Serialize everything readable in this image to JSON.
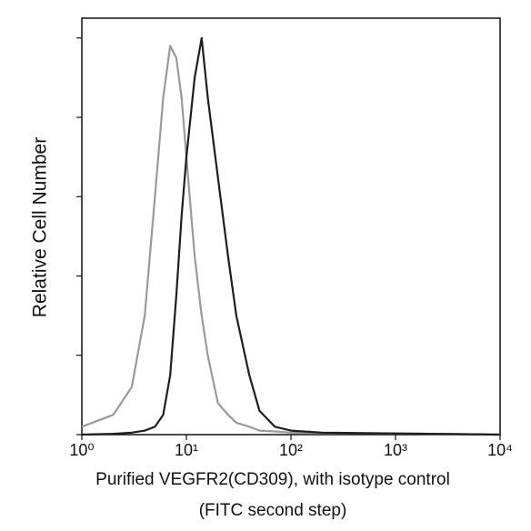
{
  "chart_data": {
    "type": "line",
    "y_label": "Relative Cell Number",
    "x_label_lines": [
      "Purified VEGFR2(CD309), with isotype control",
      "(FITC second step)"
    ],
    "x": [
      1,
      2,
      3,
      4,
      5,
      6,
      7,
      8,
      9,
      10,
      12,
      14,
      16,
      20,
      25,
      30,
      40,
      50,
      70,
      100,
      200,
      1000,
      10000
    ],
    "series": [
      {
        "color": "#9a9a9a",
        "values": [
          2,
          5,
          12,
          30,
          60,
          85,
          98,
          95,
          85,
          70,
          45,
          30,
          20,
          8,
          5,
          3,
          2,
          1,
          0.8,
          0.5,
          0.4,
          0.3,
          0
        ]
      },
      {
        "color": "#1e1e1e",
        "values": [
          0,
          0.2,
          0.5,
          1,
          2,
          5,
          15,
          35,
          55,
          70,
          90,
          100,
          85,
          65,
          45,
          30,
          15,
          6,
          2,
          1,
          0.5,
          0.3,
          0
        ]
      }
    ],
    "xlog": true,
    "xlim": [
      1,
      10000
    ],
    "xticks": [
      {
        "value": 1,
        "label": "10⁰"
      },
      {
        "value": 10,
        "label": "10¹"
      },
      {
        "value": 100,
        "label": "10²"
      },
      {
        "value": 1000,
        "label": "10³"
      },
      {
        "value": 10000,
        "label": "10⁴"
      }
    ],
    "ylim": [
      0,
      105
    ],
    "yticks": [
      0,
      20,
      40,
      60,
      80,
      100
    ]
  }
}
